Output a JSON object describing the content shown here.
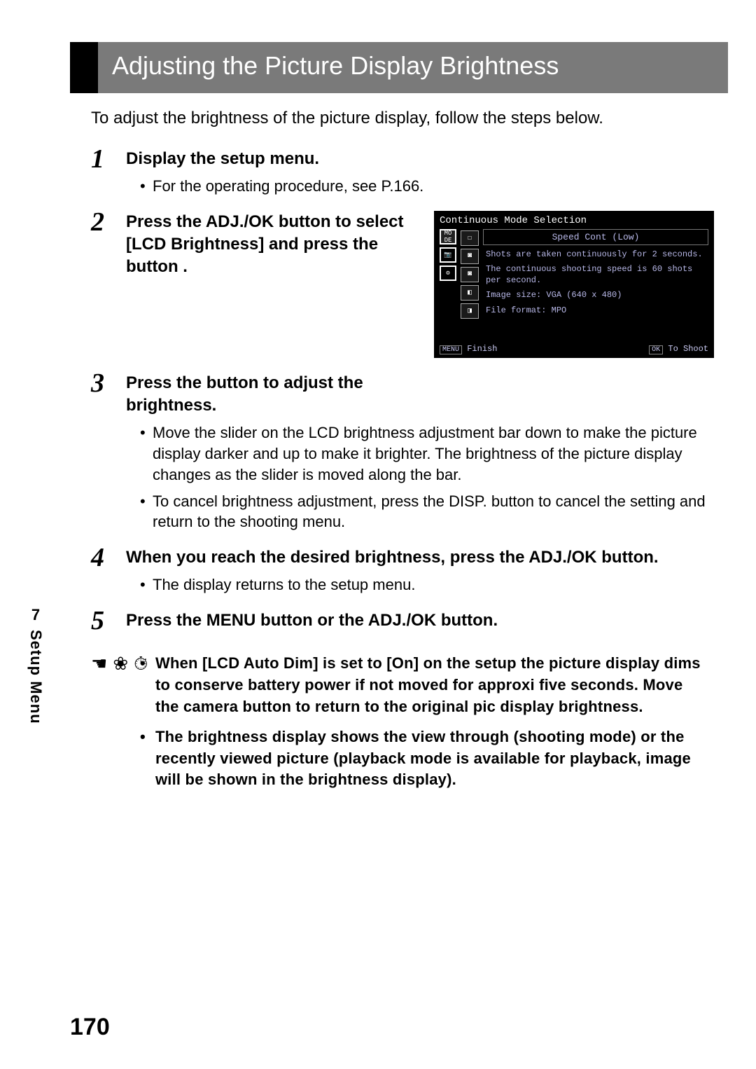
{
  "title": "Adjusting the Picture Display Brightness",
  "intro": "To adjust the brightness of the picture display, follow the steps below.",
  "sideTab": {
    "chapter": "7",
    "label": "Setup Menu"
  },
  "pageNumber": "170",
  "steps": {
    "s1": {
      "num": "1",
      "head": "Display the setup menu.",
      "b1": "For the operating procedure, see P.166."
    },
    "s2": {
      "num": "2",
      "head": "Press the ADJ./OK button      to select [LCD Brightness] and press the button    ."
    },
    "s3": {
      "num": "3",
      "head": "Press the button         to adjust the brightness.",
      "b1": "Move the slider on the LCD brightness adjustment bar down to make the picture display darker and up to make it brighter. The brightness of the picture display changes as the slider is moved along the bar.",
      "b2": "To cancel brightness adjustment, press the DISP. button to cancel the setting and return to the shooting menu."
    },
    "s4": {
      "num": "4",
      "head": "When you reach the desired brightness, press the ADJ./OK button.",
      "b1": "The display returns to the setup menu."
    },
    "s5": {
      "num": "5",
      "head": "Press the MENU button or the ADJ./OK button."
    }
  },
  "notes": {
    "n1": "When [LCD Auto Dim] is set to [On] on the setup the picture display dims to conserve battery power if not moved for approxi five seconds. Move the camera button to return to the original pic display brightness.",
    "n2": "The brightness display shows the view through (shooting mode) or the recently viewed picture (playback mode is available for playback, image will be shown in the brightness display)."
  },
  "lcd": {
    "title": "Continuous Mode Selection",
    "speedLabel": "Speed Cont (Low)",
    "desc1": "Shots are taken continuously for 2 seconds.",
    "desc2": "The continuous shooting speed is 60 shots per second.",
    "desc3": "Image size: VGA (640 x 480)",
    "desc4": "File format: MPO",
    "menuBtn": "MENU",
    "finish": "Finish",
    "okBtn": "OK",
    "toShoot": "To Shoot",
    "modeA": "MO\nDE",
    "icon1": "☐",
    "icon2": "◙",
    "icon3": "◙",
    "icon4": "◧",
    "icon5": "◨"
  }
}
